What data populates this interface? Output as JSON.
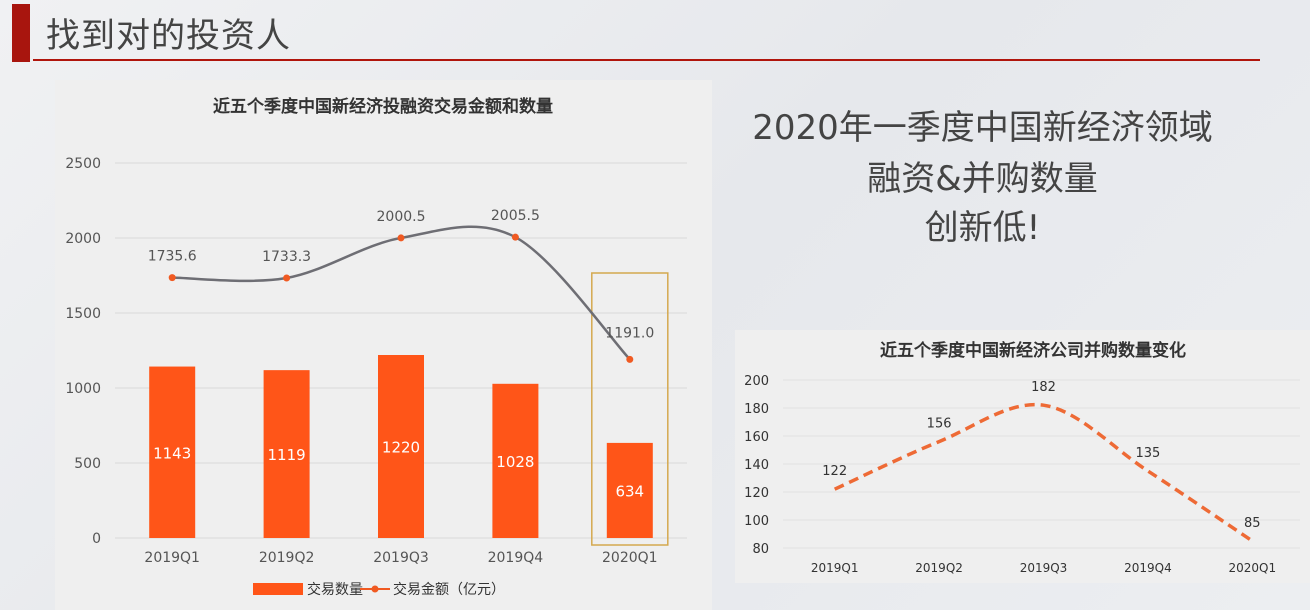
{
  "page": {
    "title": "找到对的投资人"
  },
  "headline": {
    "lines": [
      "2020年一季度中国新经济领域",
      "融资&并购数量",
      "创新低!"
    ]
  },
  "colors": {
    "accent": "#a8150e",
    "bar": "#ff5518",
    "line": "#6e6e74",
    "point": "#f05a22",
    "highlight_box": "#d4a94f",
    "dashed": "#ee6a35"
  },
  "chart_data": [
    {
      "type": "bar",
      "title": "近五个季度中国新经济投融资交易金额和数量",
      "categories": [
        "2019Q1",
        "2019Q2",
        "2019Q3",
        "2019Q4",
        "2020Q1"
      ],
      "ylim": [
        0,
        2500
      ],
      "yticks": [
        0,
        500,
        1000,
        1500,
        2000,
        2500
      ],
      "grid": true,
      "legend_position": "bottom",
      "highlight_category": "2020Q1",
      "series": [
        {
          "name": "交易数量",
          "type": "bar",
          "values": [
            1143,
            1119,
            1220,
            1028,
            634
          ],
          "labels": [
            "1143",
            "1119",
            "1220",
            "1028",
            "634"
          ]
        },
        {
          "name": "交易金额（亿元）",
          "type": "line",
          "smooth": true,
          "values": [
            1735.6,
            1733.3,
            2000.5,
            2005.5,
            1191.0
          ],
          "labels": [
            "1735.6",
            "1733.3",
            "2000.5",
            "2005.5",
            "1191.0"
          ]
        }
      ]
    },
    {
      "type": "line",
      "title": "近五个季度中国新经济公司并购数量变化",
      "categories": [
        "2019Q1",
        "2019Q2",
        "2019Q3",
        "2019Q4",
        "2020Q1"
      ],
      "ylim": [
        80,
        200
      ],
      "yticks": [
        80,
        100,
        120,
        140,
        160,
        180,
        200
      ],
      "grid": true,
      "line_style": "dashed",
      "smooth": true,
      "series": [
        {
          "values": [
            122,
            156,
            182,
            135,
            85
          ],
          "labels": [
            "122",
            "156",
            "182",
            "135",
            "85"
          ]
        }
      ]
    }
  ]
}
